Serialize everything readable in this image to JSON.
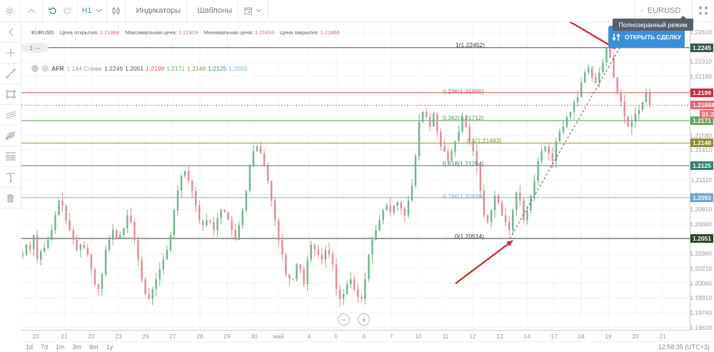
{
  "toolbar": {
    "timeframe": "H1",
    "indicators_label": "Индикаторы",
    "templates_label": "Шаблоны",
    "symbol": "EURUSD",
    "fullscreen_tooltip": "Полноэкранный режим"
  },
  "sidebar": {
    "items": [
      {
        "name": "collapse",
        "icon": "chevron-left-icon"
      },
      {
        "name": "crosshair",
        "icon": "crosshair-icon"
      },
      {
        "name": "trend-line",
        "icon": "trend-line-icon"
      },
      {
        "name": "rectangle",
        "icon": "rectangle-icon"
      },
      {
        "name": "parallel-channel",
        "icon": "channel-icon"
      },
      {
        "name": "fibonacci-fan",
        "icon": "fib-fan-icon"
      },
      {
        "name": "fibonacci-retracement",
        "icon": "fib-retracement-icon"
      },
      {
        "name": "text",
        "icon": "text-icon"
      },
      {
        "name": "delete",
        "icon": "trash-icon"
      }
    ]
  },
  "info_bar": {
    "symbol": "EURUSD",
    "open_label": "Цена открытия:",
    "open_value": "1.21884",
    "high_label": "Максимальная цена:",
    "high_value": "1.21919",
    "low_label": "Минимальная цена:",
    "low_value": "1.21833",
    "close_label": "Цена закрытия:",
    "close_value": "1.21868"
  },
  "level_pill": "1 —",
  "afr": {
    "name": "AFR",
    "params": "1 144 Слева",
    "values": [
      {
        "v": "1.2245",
        "color": "#555555"
      },
      {
        "v": "1.2051",
        "color": "#555555"
      },
      {
        "v": "1.2199",
        "color": "#e0505c"
      },
      {
        "v": "1.2171",
        "color": "#6aa86a"
      },
      {
        "v": "1.2148",
        "color": "#9a9a3a"
      },
      {
        "v": "1.2125",
        "color": "#3f8f80"
      },
      {
        "v": "1.2093",
        "color": "#7fb3e0"
      }
    ]
  },
  "trade_button": "ОТКРЫТЬ СДЕЛКУ",
  "chart_data": {
    "type": "candlestick",
    "symbol": "EURUSD",
    "timeframe": "H1",
    "ylim": [
      1.1951,
      1.2261
    ],
    "y_ticks": [
      "1.22610",
      "1.22310",
      "1.22160",
      "1.21560",
      "1.21410",
      "1.21110",
      "1.20960",
      "1.20810",
      "1.20660",
      "1.20360",
      "1.20210",
      "1.20060",
      "1.19910",
      "1.19760",
      "1.19610"
    ],
    "x_ticks": [
      "20",
      "21",
      "22",
      "23",
      "26",
      "27",
      "28",
      "29",
      "30",
      "май",
      "4",
      "5",
      "6",
      "7",
      "10",
      "11",
      "12",
      "13",
      "14",
      "17",
      "18",
      "19",
      "20",
      "21"
    ],
    "fib_levels": [
      {
        "ratio": "1",
        "label": "1(1.22452)",
        "price": 1.22452,
        "axis": "1.2245",
        "color": "#2f5a4e",
        "badge": "#2f5a4e"
      },
      {
        "ratio": "0.236",
        "label": "0.236(1.21995)",
        "price": 1.21995,
        "axis": "1.2199",
        "color": "#d9505c",
        "badge": "#d7283a"
      },
      {
        "ratio": "0.382",
        "label": "0.382(1.21712)",
        "price": 1.21712,
        "axis": "1.2171",
        "color": "#5a9a5a",
        "badge": "#5fa55a"
      },
      {
        "ratio": "0.5",
        "label": "0.5(1.21483)",
        "price": 1.21483,
        "axis": "1.2148",
        "color": "#8f8f2f",
        "badge": "#8d8c2b"
      },
      {
        "ratio": "0.618",
        "label": "0.618(1.21254)",
        "price": 1.21254,
        "axis": "1.2125",
        "color": "#2f7f70",
        "badge": "#327f72"
      },
      {
        "ratio": "0.786",
        "label": "0.786(1.20929)",
        "price": 1.20929,
        "axis": "1.2093",
        "color": "#7fb0dc",
        "badge": "#6aa6dc"
      },
      {
        "ratio": "0",
        "label": "0(1.20514)",
        "price": 1.20514,
        "axis": "1.2051",
        "color": "#2b3d2b",
        "badge": "#274a27"
      }
    ],
    "current_price": {
      "value": "1.21868",
      "color": "#e8636e"
    },
    "countdown": {
      "value": "01:24",
      "color": "#ec6f78"
    },
    "series_close_path": [
      1.2035,
      1.2045,
      1.204,
      1.2055,
      1.203,
      1.2038,
      1.2042,
      1.205,
      1.206,
      1.2075,
      1.209,
      1.2085,
      1.207,
      1.206,
      1.205,
      1.204,
      1.2045,
      1.2042,
      1.2035,
      1.202,
      1.2005,
      1.2,
      1.2015,
      1.204,
      1.205,
      1.206,
      1.2052,
      1.2055,
      1.2062,
      1.2075,
      1.2068,
      1.205,
      1.203,
      1.201,
      1.1995,
      1.199,
      1.2,
      1.201,
      1.202,
      1.203,
      1.204,
      1.2055,
      1.208,
      1.21,
      1.2115,
      1.212,
      1.211,
      1.21,
      1.2085,
      1.207,
      1.2065,
      1.207,
      1.2068,
      1.206,
      1.2072,
      1.208,
      1.2078,
      1.207,
      1.206,
      1.205,
      1.2065,
      1.208,
      1.21,
      1.2125,
      1.214,
      1.2145,
      1.2138,
      1.2125,
      1.211,
      1.209,
      1.207,
      1.205,
      1.2035,
      1.2015,
      1.201,
      1.201,
      1.2025,
      1.202,
      1.2005,
      1.203,
      1.2045,
      1.204,
      1.2035,
      1.203,
      1.204,
      1.2035,
      1.2025,
      1.2,
      1.199,
      1.1995,
      1.2005,
      1.201,
      1.2,
      1.1992,
      1.199,
      1.201,
      1.2035,
      1.205,
      1.206,
      1.207,
      1.208,
      1.2085,
      1.2078,
      1.2085,
      1.2088,
      1.2082,
      1.2075,
      1.209,
      1.2105,
      1.2135,
      1.217,
      1.218,
      1.2175,
      1.2165,
      1.2178,
      1.216,
      1.2145,
      1.214,
      1.213,
      1.214,
      1.215,
      1.216,
      1.2175,
      1.2165,
      1.215,
      1.214,
      1.2125,
      1.21,
      1.2075,
      1.2068,
      1.208,
      1.2095,
      1.2088,
      1.2075,
      1.2068,
      1.206,
      1.208,
      1.2098,
      1.209,
      1.207,
      1.208,
      1.2095,
      1.211,
      1.213,
      1.214,
      1.2145,
      1.2138,
      1.213,
      1.215,
      1.216,
      1.2165,
      1.2175,
      1.218,
      1.219,
      1.2195,
      1.221,
      1.222,
      1.2225,
      1.2215,
      1.221,
      1.222,
      1.223,
      1.2245,
      1.2235,
      1.2215,
      1.22,
      1.219,
      1.2175,
      1.2165,
      1.217,
      1.2178,
      1.2182,
      1.219,
      1.2199,
      1.2187
    ]
  },
  "time_axis": [
    "20",
    "21",
    "22",
    "23",
    "26",
    "27",
    "28",
    "29",
    "30",
    "май",
    "4",
    "5",
    "6",
    "7",
    "10",
    "11",
    "12",
    "13",
    "14",
    "17",
    "18",
    "19",
    "20",
    "21"
  ],
  "range_buttons": [
    "1d",
    "7d",
    "1m",
    "3m",
    "6m",
    "1y"
  ],
  "clock": "12:58:35 (UTC+3)"
}
